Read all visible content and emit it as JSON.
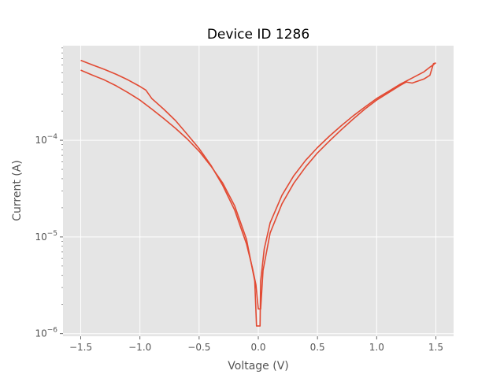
{
  "chart_data": {
    "type": "line",
    "title": "Device ID 1286",
    "xlabel": "Voltage (V)",
    "ylabel": "Current (A)",
    "xscale": "linear",
    "yscale": "log",
    "xlim": [
      -1.65,
      1.65
    ],
    "ylim": [
      9.4e-07,
      0.00095
    ],
    "grid": true,
    "x_ticks": [
      {
        "value": -1.5,
        "label": "−1.5"
      },
      {
        "value": -1.0,
        "label": "−1.0"
      },
      {
        "value": -0.5,
        "label": "−0.5"
      },
      {
        "value": 0.0,
        "label": "0.0"
      },
      {
        "value": 0.5,
        "label": "0.5"
      },
      {
        "value": 1.0,
        "label": "1.0"
      },
      {
        "value": 1.5,
        "label": "1.5"
      }
    ],
    "y_major_ticks": [
      {
        "value": 1e-06,
        "base": "10",
        "exp": "−6"
      },
      {
        "value": 1e-05,
        "base": "10",
        "exp": "−5"
      },
      {
        "value": 0.0001,
        "base": "10",
        "exp": "−4"
      }
    ],
    "series": [
      {
        "color": "#E24A33",
        "points": [
          [
            -1.5,
            0.00067
          ],
          [
            -1.4,
            0.0006
          ],
          [
            -1.3,
            0.00054
          ],
          [
            -1.2,
            0.00048
          ],
          [
            -1.1,
            0.00042
          ],
          [
            -1.0,
            0.00036
          ],
          [
            -0.95,
            0.00033
          ],
          [
            -0.9,
            0.00027
          ],
          [
            -0.8,
            0.00021
          ],
          [
            -0.7,
            0.00016
          ],
          [
            -0.6,
            0.000115
          ],
          [
            -0.5,
            8.2e-05
          ],
          [
            -0.4,
            5.5e-05
          ],
          [
            -0.3,
            3.4e-05
          ],
          [
            -0.2,
            1.9e-05
          ],
          [
            -0.1,
            8.5e-06
          ],
          [
            -0.05,
            4.8e-06
          ],
          [
            -0.02,
            3.2e-06
          ],
          [
            0.0,
            1.8e-06
          ],
          [
            0.02,
            1.8e-06
          ],
          [
            0.04,
            4.5e-06
          ],
          [
            0.1,
            1.1e-05
          ],
          [
            0.2,
            2.2e-05
          ],
          [
            0.3,
            3.6e-05
          ],
          [
            0.4,
            5.3e-05
          ],
          [
            0.5,
            7.4e-05
          ],
          [
            0.6,
            9.8e-05
          ],
          [
            0.7,
            0.000128
          ],
          [
            0.8,
            0.000165
          ],
          [
            0.9,
            0.00021
          ],
          [
            1.0,
            0.00026
          ],
          [
            1.1,
            0.00031
          ],
          [
            1.2,
            0.00037
          ],
          [
            1.25,
            0.0004
          ],
          [
            1.3,
            0.00039
          ],
          [
            1.4,
            0.00043
          ],
          [
            1.45,
            0.00047
          ],
          [
            1.48,
            0.00062
          ],
          [
            1.5,
            0.00063
          ]
        ]
      },
      {
        "color": "#E24A33",
        "points": [
          [
            1.5,
            0.00063
          ],
          [
            1.45,
            0.00057
          ],
          [
            1.4,
            0.00051
          ],
          [
            1.3,
            0.00044
          ],
          [
            1.2,
            0.00038
          ],
          [
            1.1,
            0.00032
          ],
          [
            1.0,
            0.00027
          ],
          [
            0.9,
            0.00022
          ],
          [
            0.8,
            0.000178
          ],
          [
            0.7,
            0.000141
          ],
          [
            0.6,
            0.00011
          ],
          [
            0.5,
            8.4e-05
          ],
          [
            0.4,
            6.2e-05
          ],
          [
            0.3,
            4.3e-05
          ],
          [
            0.2,
            2.7e-05
          ],
          [
            0.1,
            1.4e-05
          ],
          [
            0.05,
            7.5e-06
          ],
          [
            0.02,
            3.5e-06
          ],
          [
            0.015,
            1.2e-06
          ],
          [
            -0.015,
            1.2e-06
          ],
          [
            -0.03,
            3.5e-06
          ],
          [
            -0.1,
            9.5e-06
          ],
          [
            -0.2,
            2.1e-05
          ],
          [
            -0.3,
            3.6e-05
          ],
          [
            -0.4,
            5.4e-05
          ],
          [
            -0.5,
            7.7e-05
          ],
          [
            -0.6,
            0.000103
          ],
          [
            -0.7,
            0.000133
          ],
          [
            -0.8,
            0.000168
          ],
          [
            -0.9,
            0.00021
          ],
          [
            -1.0,
            0.00026
          ],
          [
            -1.1,
            0.00031
          ],
          [
            -1.2,
            0.000365
          ],
          [
            -1.3,
            0.00042
          ],
          [
            -1.4,
            0.00047
          ],
          [
            -1.5,
            0.00053
          ]
        ]
      }
    ]
  }
}
